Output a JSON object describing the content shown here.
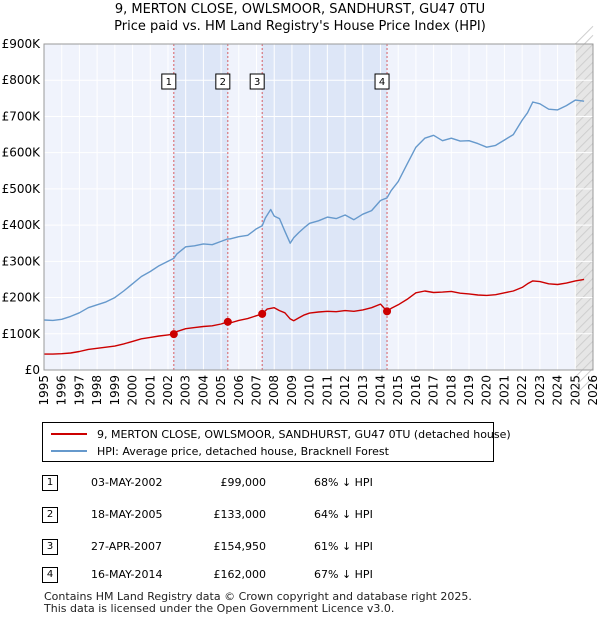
{
  "title_line1": "9, MERTON CLOSE, OWLSMOOR, SANDHURST, GU47 0TU",
  "title_line2": "Price paid vs. HM Land Registry's House Price Index (HPI)",
  "colors": {
    "property": "#cc0000",
    "hpi": "#6699cc",
    "shade": "#dde6f7",
    "marker": "#cc0000"
  },
  "legend": [
    {
      "label": "9, MERTON CLOSE, OWLSMOOR, SANDHURST, GU47 0TU (detached house)",
      "color": "#cc0000"
    },
    {
      "label": "HPI: Average price, detached house, Bracknell Forest",
      "color": "#6699cc"
    }
  ],
  "sales": [
    {
      "num": "1",
      "date": "03-MAY-2002",
      "price": "£99,000",
      "hpi_diff": "68% ↓ HPI"
    },
    {
      "num": "2",
      "date": "18-MAY-2005",
      "price": "£133,000",
      "hpi_diff": "64% ↓ HPI"
    },
    {
      "num": "3",
      "date": "27-APR-2007",
      "price": "£154,950",
      "hpi_diff": "61% ↓ HPI"
    },
    {
      "num": "4",
      "date": "16-MAY-2014",
      "price": "£162,000",
      "hpi_diff": "67% ↓ HPI"
    }
  ],
  "footer_line1": "Contains HM Land Registry data © Crown copyright and database right 2025.",
  "footer_line2": "This data is licensed under the Open Government Licence v3.0.",
  "chart_data": {
    "type": "line",
    "title": "9, MERTON CLOSE, OWLSMOOR, SANDHURST, GU47 0TU",
    "subtitle": "Price paid vs. HM Land Registry's House Price Index (HPI)",
    "xlabel": "",
    "ylabel": "",
    "xlim": [
      1995,
      2026
    ],
    "ylim": [
      0,
      900000
    ],
    "grid": true,
    "x_ticks": [
      "1995",
      "1996",
      "1997",
      "1998",
      "1999",
      "2000",
      "2001",
      "2002",
      "2003",
      "2004",
      "2005",
      "2006",
      "2007",
      "2008",
      "2009",
      "2010",
      "2011",
      "2012",
      "2013",
      "2014",
      "2015",
      "2016",
      "2017",
      "2018",
      "2019",
      "2020",
      "2021",
      "2022",
      "2023",
      "2024",
      "2025",
      "2026"
    ],
    "y_ticks": [
      {
        "value": 0,
        "label": "£0"
      },
      {
        "value": 100000,
        "label": "£100K"
      },
      {
        "value": 200000,
        "label": "£200K"
      },
      {
        "value": 300000,
        "label": "£300K"
      },
      {
        "value": 400000,
        "label": "£400K"
      },
      {
        "value": 500000,
        "label": "£500K"
      },
      {
        "value": 600000,
        "label": "£600K"
      },
      {
        "value": 700000,
        "label": "£700K"
      },
      {
        "value": 800000,
        "label": "£800K"
      },
      {
        "value": 900000,
        "label": "£900K"
      }
    ],
    "shaded_ranges": [
      [
        2002.33,
        2005.38
      ],
      [
        2007.32,
        2014.37
      ]
    ],
    "future_from": 2025.0,
    "series": [
      {
        "name": "HPI: Average price, detached house, Bracknell Forest",
        "color": "#6699cc",
        "x": [
          1995.0,
          1995.5,
          1996.0,
          1996.5,
          1997.0,
          1997.5,
          1998.0,
          1998.5,
          1999.0,
          1999.5,
          2000.0,
          2000.5,
          2001.0,
          2001.5,
          2002.0,
          2002.33,
          2002.5,
          2003.0,
          2003.5,
          2004.0,
          2004.5,
          2005.0,
          2005.38,
          2005.5,
          2006.0,
          2006.5,
          2007.0,
          2007.32,
          2007.5,
          2007.8,
          2008.0,
          2008.3,
          2008.6,
          2008.9,
          2009.1,
          2009.4,
          2009.7,
          2010.0,
          2010.5,
          2011.0,
          2011.5,
          2012.0,
          2012.5,
          2013.0,
          2013.5,
          2014.0,
          2014.37,
          2014.6,
          2015.0,
          2015.5,
          2016.0,
          2016.5,
          2017.0,
          2017.5,
          2018.0,
          2018.5,
          2019.0,
          2019.5,
          2020.0,
          2020.5,
          2021.0,
          2021.5,
          2022.0,
          2022.3,
          2022.6,
          2023.0,
          2023.5,
          2024.0,
          2024.5,
          2025.0,
          2025.5
        ],
        "values": [
          138000,
          137000,
          140000,
          148000,
          158000,
          172000,
          180000,
          188000,
          200000,
          218000,
          238000,
          258000,
          272000,
          288000,
          300000,
          308000,
          320000,
          340000,
          343000,
          348000,
          346000,
          355000,
          362000,
          362000,
          368000,
          372000,
          390000,
          398000,
          420000,
          443000,
          425000,
          418000,
          383000,
          350000,
          365000,
          380000,
          393000,
          405000,
          412000,
          422000,
          418000,
          428000,
          415000,
          430000,
          440000,
          468000,
          475000,
          495000,
          520000,
          568000,
          615000,
          640000,
          648000,
          633000,
          640000,
          632000,
          633000,
          625000,
          615000,
          620000,
          635000,
          650000,
          690000,
          710000,
          740000,
          735000,
          720000,
          718000,
          730000,
          745000,
          742000
        ]
      },
      {
        "name": "9, MERTON CLOSE, OWLSMOOR, SANDHURST, GU47 0TU (detached house)",
        "color": "#cc0000",
        "x": [
          1995.0,
          1995.5,
          1996.0,
          1996.5,
          1997.0,
          1997.5,
          1998.0,
          1998.5,
          1999.0,
          1999.5,
          2000.0,
          2000.5,
          2001.0,
          2001.5,
          2002.0,
          2002.33,
          2002.5,
          2003.0,
          2003.5,
          2004.0,
          2004.5,
          2005.0,
          2005.38,
          2005.6,
          2006.0,
          2006.5,
          2007.0,
          2007.32,
          2007.6,
          2008.0,
          2008.3,
          2008.6,
          2008.9,
          2009.1,
          2009.4,
          2009.7,
          2010.0,
          2010.5,
          2011.0,
          2011.5,
          2012.0,
          2012.5,
          2013.0,
          2013.5,
          2014.0,
          2014.37,
          2014.6,
          2015.0,
          2015.5,
          2016.0,
          2016.5,
          2017.0,
          2017.5,
          2018.0,
          2018.5,
          2019.0,
          2019.5,
          2020.0,
          2020.5,
          2021.0,
          2021.5,
          2022.0,
          2022.3,
          2022.6,
          2023.0,
          2023.5,
          2024.0,
          2024.5,
          2025.0,
          2025.5
        ],
        "values": [
          44000,
          44000,
          45000,
          47000,
          51000,
          57000,
          60000,
          63000,
          66000,
          72000,
          79000,
          86000,
          90000,
          94000,
          97000,
          99000,
          106000,
          114000,
          117000,
          120000,
          122000,
          127000,
          133000,
          131000,
          137000,
          142000,
          150000,
          154950,
          168000,
          172000,
          164000,
          158000,
          141000,
          136000,
          144000,
          152000,
          157000,
          160000,
          162000,
          161000,
          164000,
          162000,
          166000,
          172000,
          182000,
          162000,
          170000,
          180000,
          195000,
          213000,
          218000,
          214000,
          215000,
          217000,
          212000,
          210000,
          207000,
          206000,
          208000,
          213000,
          218000,
          228000,
          238000,
          246000,
          244000,
          238000,
          236000,
          240000,
          246000,
          250000
        ]
      }
    ],
    "sale_markers": [
      {
        "num": "1",
        "x": 2002.33,
        "value": 99000
      },
      {
        "num": "2",
        "x": 2005.38,
        "value": 133000
      },
      {
        "num": "3",
        "x": 2007.32,
        "value": 154950
      },
      {
        "num": "4",
        "x": 2014.37,
        "value": 162000
      }
    ]
  }
}
